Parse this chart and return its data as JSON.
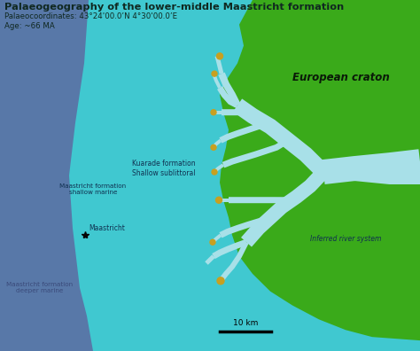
{
  "title": "Palaeogeography of the lower-middle Maastricht formation",
  "subtitle1": "Palaeocoordinates: 43°24'00.0’N 4°30'00.0’E",
  "subtitle2": "Age: ~66 MA",
  "deep_marine_color": "#5878a8",
  "shallow_marine_color": "#40c8d0",
  "river_color": "#a8e0e8",
  "land_color": "#3aaa1a",
  "sand_color": "#c8a020",
  "text_dark": "#102820",
  "label_color": "#103050"
}
